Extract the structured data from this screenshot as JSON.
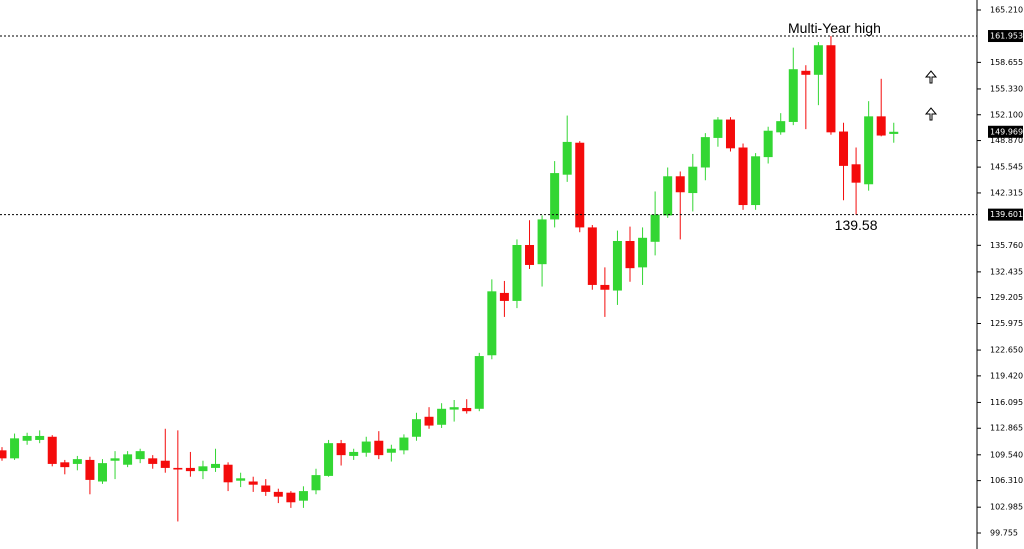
{
  "chart_data": {
    "type": "candlestick",
    "up_color": "#33d633",
    "down_color": "#f40b0b",
    "ylim": [
      99.755,
      165.21
    ],
    "yticks": [
      {
        "value": 165.21,
        "label": "165.210"
      },
      158.655,
      {
        "value": 155.33,
        "label": "155.330"
      },
      {
        "value": 152.1,
        "label": "152.100"
      },
      {
        "value": 148.87,
        "label": "148.870"
      },
      145.545,
      142.315,
      {
        "value": 135.76,
        "label": "135.760"
      },
      132.435,
      129.205,
      125.975,
      {
        "value": 122.65,
        "label": "122.650"
      },
      {
        "value": 119.42,
        "label": "119.420"
      },
      116.095,
      112.865,
      {
        "value": 109.54,
        "label": "109.540"
      },
      {
        "value": 106.31,
        "label": "106.310"
      },
      102.985,
      99.755
    ],
    "levels": [
      161.953,
      139.601
    ],
    "last_price": 149.969,
    "high_note": "Multi-Year high",
    "low_note": 139.58,
    "open": [
      110.1,
      109.1,
      111.3,
      111.4,
      111.8,
      108.6,
      108.4,
      108.9,
      106.2,
      108.8,
      108.3,
      109.0,
      109.1,
      108.8,
      107.9,
      107.9,
      107.5,
      107.9,
      108.3,
      106.3,
      106.2,
      105.7,
      104.9,
      104.8,
      103.8,
      105.1,
      106.9,
      111.0,
      109.4,
      109.8,
      111.3,
      109.8,
      110.1,
      111.8,
      114.3,
      113.3,
      115.2,
      115.4,
      115.3,
      122.0,
      129.8,
      128.8,
      135.8,
      133.4,
      139.0,
      144.6,
      148.6,
      138.0,
      130.8,
      130.1,
      136.3,
      133.0,
      136.2,
      139.5,
      144.4,
      142.3,
      145.5,
      149.2,
      151.5,
      148.0,
      140.8,
      146.8,
      149.9,
      151.2,
      157.6,
      157.1,
      160.8,
      150.0,
      145.9,
      143.4,
      151.9,
      149.7
    ],
    "high": [
      110.5,
      112.2,
      112.3,
      112.6,
      112.0,
      108.9,
      109.4,
      109.3,
      109.0,
      110.0,
      110.0,
      110.3,
      109.5,
      112.8,
      112.6,
      109.9,
      108.8,
      110.3,
      108.6,
      107.3,
      106.8,
      106.5,
      105.3,
      105.0,
      105.6,
      107.8,
      111.4,
      111.4,
      110.3,
      111.8,
      112.5,
      110.8,
      112.1,
      114.8,
      115.5,
      116.0,
      116.4,
      116.5,
      122.3,
      131.5,
      131.3,
      136.5,
      138.9,
      139.5,
      146.3,
      152.0,
      148.8,
      138.3,
      133.0,
      137.6,
      138.1,
      138.0,
      142.5,
      145.5,
      145.0,
      147.2,
      149.8,
      151.8,
      151.8,
      148.5,
      147.3,
      150.6,
      152.3,
      160.5,
      158.3,
      161.2,
      161.953,
      151.1,
      148.0,
      153.8,
      156.6,
      151.1
    ],
    "low": [
      108.8,
      108.9,
      110.8,
      111.0,
      108.1,
      107.1,
      107.6,
      104.6,
      105.9,
      106.5,
      108.0,
      108.5,
      107.8,
      107.3,
      101.2,
      106.8,
      106.5,
      107.4,
      105.0,
      105.5,
      104.9,
      104.4,
      103.5,
      102.9,
      102.9,
      104.6,
      106.8,
      108.2,
      108.9,
      109.3,
      109.0,
      108.7,
      109.6,
      111.3,
      112.8,
      112.9,
      113.7,
      114.7,
      115.0,
      121.5,
      126.8,
      127.9,
      132.8,
      130.6,
      138.0,
      143.7,
      137.4,
      130.2,
      126.8,
      128.3,
      131.2,
      130.8,
      134.5,
      139.2,
      136.5,
      140.0,
      143.9,
      148.1,
      147.5,
      140.2,
      140.2,
      146.0,
      149.6,
      150.8,
      150.3,
      153.3,
      149.6,
      141.4,
      139.58,
      142.6,
      149.4,
      148.6
    ],
    "close": [
      109.1,
      111.6,
      111.9,
      111.9,
      108.4,
      108.0,
      109.0,
      106.4,
      108.5,
      109.1,
      109.6,
      110.0,
      108.4,
      107.9,
      107.7,
      107.5,
      108.1,
      108.4,
      106.1,
      106.6,
      105.8,
      104.9,
      104.3,
      103.6,
      105.0,
      107.0,
      111.0,
      109.5,
      109.9,
      111.2,
      109.5,
      110.3,
      111.7,
      114.0,
      113.2,
      115.3,
      115.5,
      115.0,
      121.9,
      130.0,
      128.8,
      135.8,
      133.3,
      139.0,
      144.8,
      148.7,
      138.0,
      130.8,
      130.2,
      136.3,
      132.9,
      136.7,
      139.6,
      144.4,
      142.4,
      145.6,
      149.3,
      151.5,
      147.9,
      140.8,
      146.9,
      150.1,
      151.3,
      157.8,
      157.1,
      160.8,
      149.9,
      145.7,
      143.6,
      151.9,
      149.5,
      149.969
    ]
  }
}
